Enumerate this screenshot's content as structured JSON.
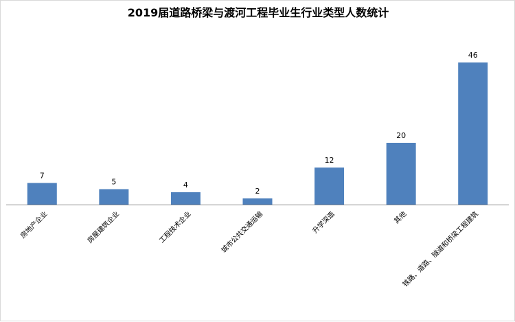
{
  "chart_data": {
    "type": "bar",
    "title": "2019届道路桥梁与渡河工程毕业生行业类型人数统计",
    "categories": [
      "房地产企业",
      "房屋建筑企业",
      "工程技术企业",
      "城市公共交通运输",
      "升学深造",
      "其他",
      "铁路、道路、隧道和桥梁工程建筑"
    ],
    "values": [
      7,
      5,
      4,
      2,
      12,
      20,
      46
    ],
    "xlabel": "",
    "ylabel": "",
    "ylim": [
      0,
      50
    ],
    "grid": false,
    "legend": "none",
    "bar_color": "#4F81BD",
    "axis_color": "#888888"
  }
}
